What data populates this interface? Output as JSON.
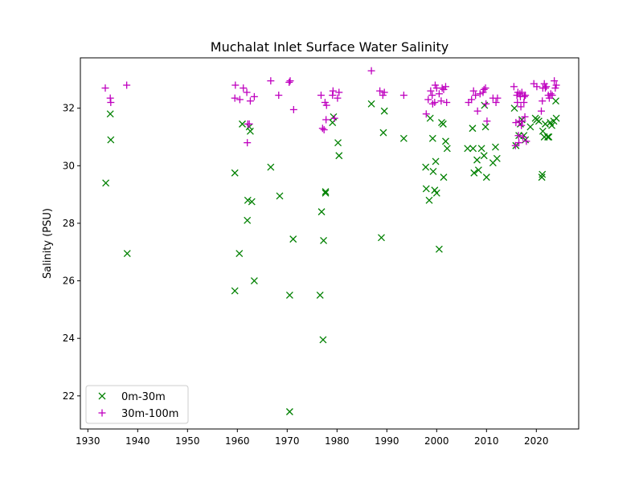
{
  "chart_data": {
    "type": "scatter",
    "title": "Muchalat Inlet Surface Water Salinity",
    "xlabel": "",
    "ylabel": "Salinity (PSU)",
    "xlim": [
      1928.5,
      2028.5
    ],
    "ylim": [
      20.85,
      33.75
    ],
    "xticks": [
      1930,
      1940,
      1950,
      1960,
      1970,
      1980,
      1990,
      2000,
      2010,
      2020
    ],
    "yticks": [
      22,
      24,
      26,
      28,
      30,
      32
    ],
    "grid": false,
    "legend_position": "lower-left",
    "series": [
      {
        "name": "0m-30m",
        "marker": "x",
        "color": "#008000",
        "points": [
          [
            1933.6,
            29.4
          ],
          [
            1934.5,
            31.8
          ],
          [
            1934.6,
            30.9
          ],
          [
            1937.9,
            26.95
          ],
          [
            1959.5,
            29.75
          ],
          [
            1959.5,
            25.65
          ],
          [
            1960.4,
            26.95
          ],
          [
            1961.0,
            31.45
          ],
          [
            1962.0,
            28.1
          ],
          [
            1962.1,
            28.8
          ],
          [
            1962.4,
            31.35
          ],
          [
            1962.6,
            31.2
          ],
          [
            1962.9,
            28.75
          ],
          [
            1963.4,
            26.0
          ],
          [
            1966.7,
            29.95
          ],
          [
            1968.5,
            28.95
          ],
          [
            1970.5,
            25.5
          ],
          [
            1970.5,
            21.45
          ],
          [
            1971.2,
            27.45
          ],
          [
            1976.6,
            25.5
          ],
          [
            1976.9,
            28.4
          ],
          [
            1977.2,
            23.95
          ],
          [
            1977.3,
            27.4
          ],
          [
            1977.7,
            29.1
          ],
          [
            1977.7,
            29.05
          ],
          [
            1979.1,
            31.5
          ],
          [
            1979.3,
            31.7
          ],
          [
            1980.2,
            30.8
          ],
          [
            1980.4,
            30.35
          ],
          [
            1986.9,
            32.15
          ],
          [
            1988.9,
            27.5
          ],
          [
            1989.3,
            31.15
          ],
          [
            1989.5,
            31.9
          ],
          [
            1993.4,
            30.95
          ],
          [
            1997.8,
            29.95
          ],
          [
            1997.9,
            29.2
          ],
          [
            1998.5,
            28.8
          ],
          [
            1998.7,
            31.65
          ],
          [
            1999.2,
            30.95
          ],
          [
            1999.3,
            29.8
          ],
          [
            1999.6,
            29.15
          ],
          [
            1999.8,
            30.15
          ],
          [
            2000.0,
            29.05
          ],
          [
            2000.5,
            27.1
          ],
          [
            2001.0,
            31.5
          ],
          [
            2001.3,
            31.45
          ],
          [
            2001.4,
            29.6
          ],
          [
            2001.8,
            30.85
          ],
          [
            2002.1,
            30.6
          ],
          [
            2006.2,
            30.6
          ],
          [
            2007.2,
            31.3
          ],
          [
            2007.3,
            30.6
          ],
          [
            2007.5,
            29.75
          ],
          [
            2008.1,
            30.2
          ],
          [
            2008.4,
            29.85
          ],
          [
            2009.0,
            30.6
          ],
          [
            2009.5,
            30.35
          ],
          [
            2009.6,
            32.1
          ],
          [
            2009.8,
            31.35
          ],
          [
            2010.0,
            29.6
          ],
          [
            2011.3,
            30.1
          ],
          [
            2011.8,
            30.65
          ],
          [
            2012.1,
            30.25
          ],
          [
            2015.6,
            32.0
          ],
          [
            2015.9,
            30.7
          ],
          [
            2016.5,
            31.05
          ],
          [
            2016.8,
            31.45
          ],
          [
            2017.1,
            31.6
          ],
          [
            2017.5,
            31.05
          ],
          [
            2017.8,
            30.9
          ],
          [
            2018.8,
            31.35
          ],
          [
            2019.8,
            31.65
          ],
          [
            2020.1,
            31.6
          ],
          [
            2020.5,
            31.55
          ],
          [
            2021.1,
            29.6
          ],
          [
            2021.2,
            29.7
          ],
          [
            2021.3,
            31.2
          ],
          [
            2021.6,
            31.0
          ],
          [
            2021.8,
            31.45
          ],
          [
            2022.3,
            31.0
          ],
          [
            2022.5,
            31.0
          ],
          [
            2022.8,
            31.5
          ],
          [
            2023.1,
            31.4
          ],
          [
            2023.5,
            31.55
          ],
          [
            2023.9,
            32.25
          ],
          [
            2024.0,
            31.65
          ]
        ]
      },
      {
        "name": "30m-100m",
        "marker": "+",
        "color": "#bf00bf",
        "points": [
          [
            1933.5,
            32.7
          ],
          [
            1934.5,
            32.35
          ],
          [
            1934.6,
            32.2
          ],
          [
            1937.8,
            32.8
          ],
          [
            1959.5,
            32.35
          ],
          [
            1959.6,
            32.8
          ],
          [
            1960.5,
            32.3
          ],
          [
            1961.2,
            32.7
          ],
          [
            1961.9,
            32.55
          ],
          [
            1962.0,
            30.8
          ],
          [
            1962.1,
            31.45
          ],
          [
            1962.4,
            31.45
          ],
          [
            1962.6,
            32.25
          ],
          [
            1963.4,
            32.4
          ],
          [
            1966.7,
            32.95
          ],
          [
            1968.3,
            32.45
          ],
          [
            1970.4,
            32.9
          ],
          [
            1970.6,
            32.95
          ],
          [
            1971.3,
            31.95
          ],
          [
            1976.8,
            32.45
          ],
          [
            1977.1,
            31.3
          ],
          [
            1977.4,
            31.25
          ],
          [
            1977.6,
            32.2
          ],
          [
            1977.9,
            32.1
          ],
          [
            1977.8,
            31.6
          ],
          [
            1979.1,
            32.45
          ],
          [
            1979.2,
            32.6
          ],
          [
            1979.5,
            31.65
          ],
          [
            1980.1,
            32.35
          ],
          [
            1980.4,
            32.55
          ],
          [
            1986.9,
            33.3
          ],
          [
            1988.6,
            32.6
          ],
          [
            1989.2,
            32.45
          ],
          [
            1989.5,
            32.55
          ],
          [
            1993.4,
            32.45
          ],
          [
            1997.9,
            31.8
          ],
          [
            1998.3,
            32.3
          ],
          [
            1998.8,
            32.6
          ],
          [
            1999.1,
            32.45
          ],
          [
            1999.2,
            32.15
          ],
          [
            1999.6,
            32.2
          ],
          [
            1999.7,
            32.8
          ],
          [
            2000.0,
            32.7
          ],
          [
            2000.5,
            32.5
          ],
          [
            2000.9,
            32.25
          ],
          [
            2001.1,
            32.7
          ],
          [
            2001.4,
            32.65
          ],
          [
            2001.8,
            32.75
          ],
          [
            2002.0,
            32.2
          ],
          [
            2006.4,
            32.2
          ],
          [
            2007.0,
            32.3
          ],
          [
            2007.4,
            32.6
          ],
          [
            2007.8,
            32.45
          ],
          [
            2008.2,
            31.9
          ],
          [
            2008.7,
            32.5
          ],
          [
            2009.3,
            32.55
          ],
          [
            2009.5,
            32.65
          ],
          [
            2009.8,
            32.7
          ],
          [
            2009.9,
            32.15
          ],
          [
            2010.1,
            31.55
          ],
          [
            2011.3,
            32.35
          ],
          [
            2011.9,
            32.2
          ],
          [
            2012.2,
            32.35
          ],
          [
            2015.5,
            32.75
          ],
          [
            2015.8,
            30.7
          ],
          [
            2015.9,
            31.5
          ],
          [
            2016.1,
            32.45
          ],
          [
            2016.2,
            32.2
          ],
          [
            2016.3,
            32.55
          ],
          [
            2016.4,
            31.05
          ],
          [
            2016.5,
            30.8
          ],
          [
            2016.6,
            31.55
          ],
          [
            2016.7,
            32.5
          ],
          [
            2016.8,
            32.4
          ],
          [
            2016.9,
            32.05
          ],
          [
            2017.0,
            31.4
          ],
          [
            2017.1,
            32.55
          ],
          [
            2017.2,
            31.55
          ],
          [
            2017.3,
            31.0
          ],
          [
            2017.5,
            32.2
          ],
          [
            2017.6,
            32.4
          ],
          [
            2017.7,
            31.7
          ],
          [
            2017.8,
            32.45
          ],
          [
            2018.0,
            30.85
          ],
          [
            2019.5,
            32.85
          ],
          [
            2020.1,
            32.75
          ],
          [
            2021.0,
            31.9
          ],
          [
            2021.2,
            32.25
          ],
          [
            2021.3,
            32.7
          ],
          [
            2021.6,
            32.85
          ],
          [
            2021.8,
            32.7
          ],
          [
            2022.0,
            32.75
          ],
          [
            2022.4,
            32.45
          ],
          [
            2022.6,
            32.35
          ],
          [
            2022.9,
            32.5
          ],
          [
            2023.2,
            32.45
          ],
          [
            2023.6,
            32.95
          ],
          [
            2023.8,
            32.7
          ],
          [
            2024.0,
            32.8
          ]
        ]
      }
    ]
  }
}
